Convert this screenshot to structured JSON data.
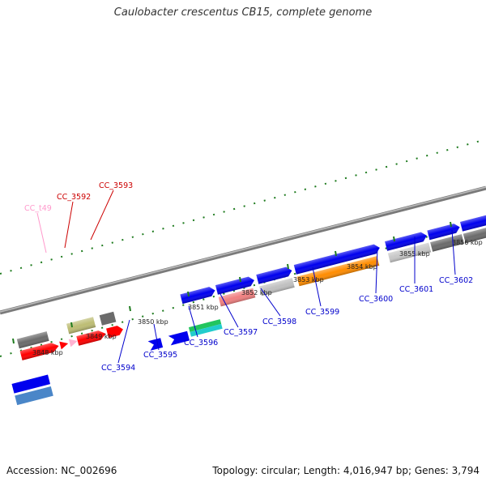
{
  "title": "Caulobacter crescentus CB15, complete genome",
  "footer": {
    "accession": "Accession: NC_002696",
    "summary": "Topology: circular; Length: 4,016,947 bp; Genes: 3,794"
  },
  "colors": {
    "backbone": "#8c8c8c",
    "ticks": "#1e7b1e",
    "label_forward": "#cc0000",
    "label_reverse": "#0000cc",
    "label_trna": "#ff99cc"
  },
  "scale_ticks": [
    "3848 kbp",
    "3849 kbp",
    "3850 kbp",
    "3851 kbp",
    "3852 kbp",
    "3853 kbp",
    "3854 kbp",
    "3855 kbp",
    "3856 kbp"
  ],
  "gene_labels": [
    "CC_t49",
    "CC_3592",
    "CC_3593",
    "CC_3594",
    "CC_3595",
    "CC_3596",
    "CC_3597",
    "CC_3598",
    "CC_3599",
    "CC_3600",
    "CC_3601",
    "CC_3602"
  ]
}
